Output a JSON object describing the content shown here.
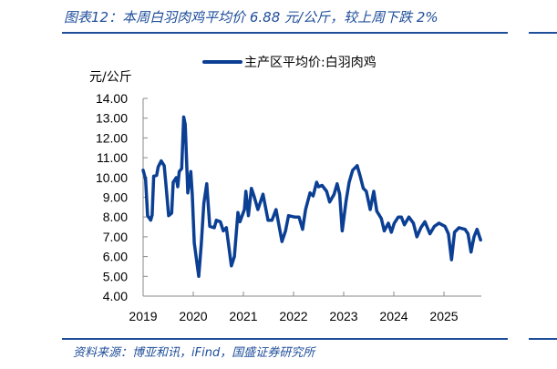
{
  "header": {
    "title": "图表12：本周白羽肉鸡平均价 6.88 元/公斤，较上周下跌 2%"
  },
  "footer": {
    "source": "资料来源：博亚和讯，iFind，国盛证券研究所"
  },
  "colors": {
    "accent": "#1f4e9a",
    "series": "#0b3f94"
  },
  "chart_data": {
    "type": "line",
    "title": "",
    "xlabel": "",
    "ylabel": "元/公斤",
    "xlim": [
      2019,
      2025.75
    ],
    "ylim": [
      4,
      14
    ],
    "yticks": [
      "4.00",
      "5.00",
      "6.00",
      "7.00",
      "8.00",
      "9.00",
      "10.00",
      "11.00",
      "12.00",
      "13.00",
      "14.00"
    ],
    "xticks": [
      "2019",
      "2020",
      "2021",
      "2022",
      "2023",
      "2024",
      "2025"
    ],
    "grid": false,
    "legend_position": "top",
    "series": [
      {
        "name": "主产区平均价:白羽肉鸡",
        "x": [
          2019.0,
          2019.05,
          2019.09,
          2019.15,
          2019.18,
          2019.21,
          2019.27,
          2019.3,
          2019.36,
          2019.42,
          2019.45,
          2019.51,
          2019.57,
          2019.6,
          2019.66,
          2019.69,
          2019.72,
          2019.77,
          2019.81,
          2019.84,
          2019.89,
          2019.95,
          2019.98,
          2020.02,
          2020.11,
          2020.16,
          2020.21,
          2020.27,
          2020.33,
          2020.42,
          2020.46,
          2020.54,
          2020.6,
          2020.66,
          2020.76,
          2020.82,
          2020.89,
          2020.93,
          2021.02,
          2021.05,
          2021.1,
          2021.16,
          2021.21,
          2021.29,
          2021.39,
          2021.49,
          2021.57,
          2021.65,
          2021.77,
          2021.84,
          2021.9,
          2022.02,
          2022.11,
          2022.18,
          2022.24,
          2022.33,
          2022.39,
          2022.46,
          2022.5,
          2022.57,
          2022.66,
          2022.72,
          2022.81,
          2022.87,
          2022.92,
          2022.97,
          2023.05,
          2023.11,
          2023.18,
          2023.27,
          2023.33,
          2023.39,
          2023.45,
          2023.53,
          2023.6,
          2023.66,
          2023.75,
          2023.81,
          2023.89,
          2023.95,
          2024.01,
          2024.09,
          2024.15,
          2024.21,
          2024.3,
          2024.39,
          2024.46,
          2024.54,
          2024.62,
          2024.72,
          2024.81,
          2024.9,
          2025.02,
          2025.09,
          2025.15,
          2025.21,
          2025.3,
          2025.42,
          2025.48,
          2025.54,
          2025.6,
          2025.66,
          2025.73
        ],
        "y": [
          10.37,
          9.91,
          8.07,
          7.84,
          8.1,
          10.07,
          10.1,
          10.53,
          10.84,
          10.6,
          9.76,
          8.07,
          8.2,
          9.76,
          9.99,
          9.53,
          10.3,
          10.45,
          13.06,
          12.68,
          9.22,
          10.3,
          9.15,
          6.69,
          5.0,
          6.63,
          8.69,
          9.68,
          7.53,
          7.46,
          7.84,
          7.76,
          7.3,
          7.46,
          5.53,
          6.0,
          8.23,
          7.76,
          8.38,
          9.3,
          8.07,
          9.45,
          9.07,
          8.38,
          9.15,
          7.84,
          7.84,
          8.38,
          6.76,
          7.3,
          8.07,
          8.0,
          8.0,
          7.38,
          8.38,
          9.22,
          9.07,
          9.76,
          9.53,
          9.6,
          9.3,
          8.76,
          9.15,
          9.68,
          9.15,
          7.3,
          8.84,
          9.76,
          10.37,
          10.6,
          10.07,
          9.45,
          9.3,
          8.38,
          9.3,
          8.3,
          7.92,
          7.3,
          7.69,
          7.23,
          7.69,
          8.0,
          8.0,
          7.61,
          8.0,
          7.69,
          7.0,
          7.46,
          7.76,
          7.15,
          7.53,
          7.69,
          7.53,
          7.15,
          5.84,
          7.23,
          7.46,
          7.38,
          7.15,
          6.23,
          7.0,
          7.38,
          6.84
        ]
      }
    ]
  }
}
